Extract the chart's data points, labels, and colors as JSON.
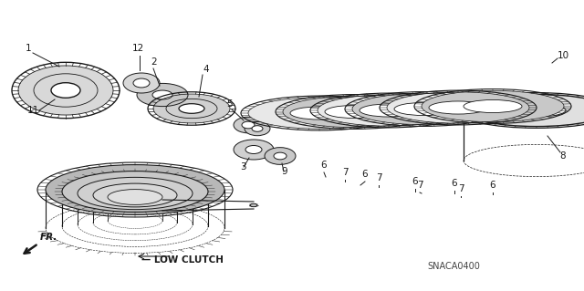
{
  "bg_color": "#ffffff",
  "line_color": "#1a1a1a",
  "diagram_code": "SNACA0400",
  "figsize": [
    6.4,
    3.19
  ],
  "dpi": 100
}
